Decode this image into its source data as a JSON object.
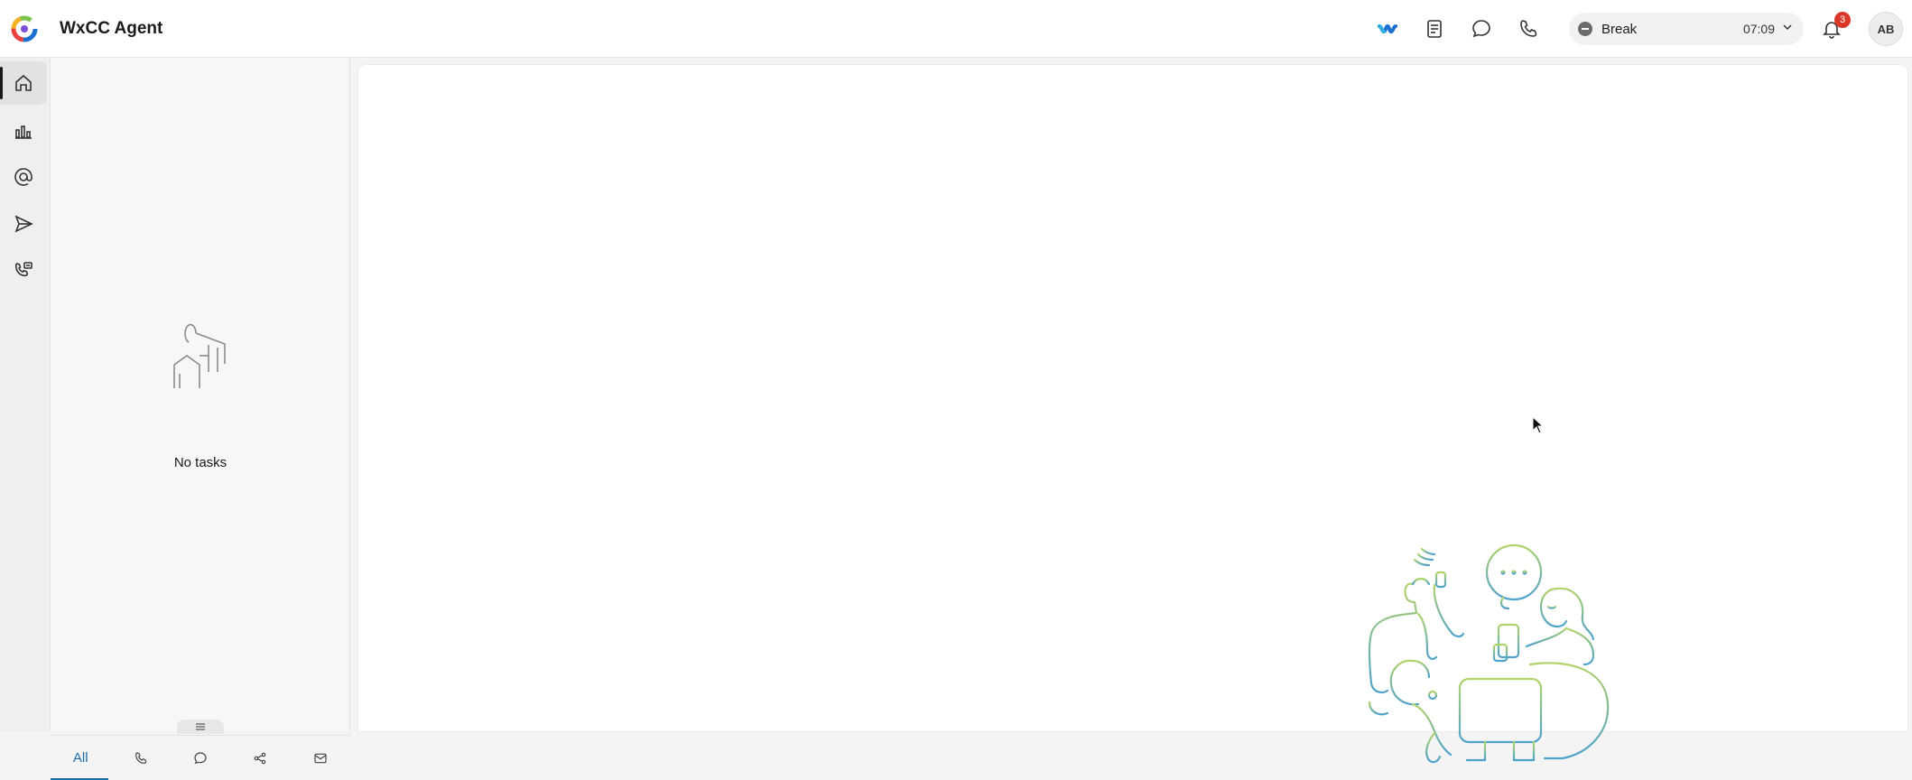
{
  "app": {
    "title": "WxCC Agent"
  },
  "header": {
    "icons": [
      "webex-icon",
      "notes-icon",
      "chat-icon",
      "phone-icon"
    ],
    "agent_state": {
      "label": "Break",
      "timer": "07:09"
    },
    "notifications": {
      "count": "3"
    },
    "avatar": {
      "initials": "AB"
    }
  },
  "nav": {
    "items": [
      {
        "name": "home-icon",
        "active": true
      },
      {
        "name": "analytics-icon",
        "active": false
      },
      {
        "name": "mention-icon",
        "active": false
      },
      {
        "name": "send-icon",
        "active": false
      },
      {
        "name": "outdial-icon",
        "active": false
      }
    ]
  },
  "tasks": {
    "empty_label": "No tasks",
    "tabs": [
      {
        "label": "All",
        "active": true
      },
      {
        "icon": "phone-icon"
      },
      {
        "icon": "chat-icon"
      },
      {
        "icon": "social-icon"
      },
      {
        "icon": "email-icon"
      }
    ]
  },
  "colors": {
    "accent": "#1a6ca8",
    "badge": "#d93829",
    "illustration_green": "#9cc96b",
    "illustration_blue": "#5aa6c8"
  }
}
